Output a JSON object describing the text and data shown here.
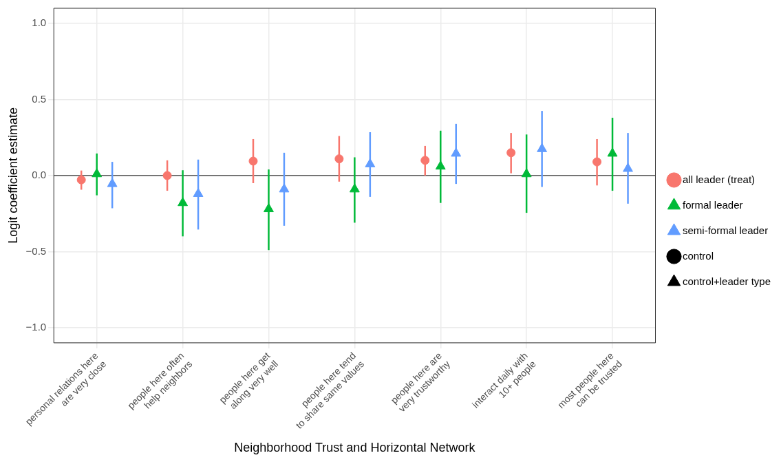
{
  "chart_data": {
    "type": "scatter",
    "xlabel": "Neighborhood Trust and Horizontal Network",
    "ylabel": "Logit coefficient estimate",
    "categories": [
      "personal relations here\nare very close",
      "people here often\nhelp neighbors",
      "people here get\nalong very well",
      "people here tend\nto share same values",
      "people here are\nvery trustworthy",
      "interact daily with\n10+ people",
      "most people here\ncan be trusted"
    ],
    "ylim": [
      -1.1,
      1.1
    ],
    "yticks": [
      {
        "value": -1,
        "label": "−1.0"
      },
      {
        "value": -0.5,
        "label": "−0.5"
      },
      {
        "value": 0,
        "label": "0.0"
      },
      {
        "value": 0.5,
        "label": "0.5"
      },
      {
        "value": 1,
        "label": "1.0"
      }
    ],
    "grid": true,
    "legend": "right",
    "ref_lines": [
      {
        "axis": "y",
        "value": 0,
        "color": "#000000"
      }
    ],
    "series": [
      {
        "name": "all leader (treat)",
        "color": "#f8766d",
        "marker": "circle",
        "values": [
          -0.028,
          0,
          0.095,
          0.11,
          0.1,
          0.15,
          0.09
        ],
        "errors": [
          [
            -0.093,
            0.033
          ],
          [
            -0.1,
            0.1
          ],
          [
            -0.05,
            0.24
          ],
          [
            -0.04,
            0.26
          ],
          [
            0.0,
            0.195
          ],
          [
            0.015,
            0.28
          ],
          [
            -0.065,
            0.24
          ]
        ]
      },
      {
        "name": "formal leader",
        "color": "#00ba38",
        "marker": "triangle",
        "values": [
          0.01,
          -0.18,
          -0.22,
          -0.09,
          0.06,
          0.01,
          0.145
        ],
        "errors": [
          [
            -0.13,
            0.145
          ],
          [
            -0.4,
            0.035
          ],
          [
            -0.49,
            0.04
          ],
          [
            -0.31,
            0.12
          ],
          [
            -0.18,
            0.295
          ],
          [
            -0.245,
            0.27
          ],
          [
            -0.1,
            0.38
          ]
        ]
      },
      {
        "name": "semi-formal leader",
        "color": "#619cff",
        "marker": "triangle",
        "values": [
          -0.055,
          -0.12,
          -0.09,
          0.075,
          0.145,
          0.175,
          0.045
        ],
        "errors": [
          [
            -0.215,
            0.09
          ],
          [
            -0.355,
            0.105
          ],
          [
            -0.33,
            0.15
          ],
          [
            -0.14,
            0.285
          ],
          [
            -0.055,
            0.34
          ],
          [
            -0.075,
            0.425
          ],
          [
            -0.185,
            0.28
          ]
        ]
      },
      {
        "name": "control",
        "color": "#000000",
        "marker": "circle",
        "values": [
          null,
          null,
          null,
          null,
          null,
          null,
          null
        ]
      },
      {
        "name": "control+leader type",
        "color": "#000000",
        "marker": "triangle",
        "values": [
          null,
          null,
          null,
          null,
          null,
          null,
          null
        ]
      }
    ]
  }
}
